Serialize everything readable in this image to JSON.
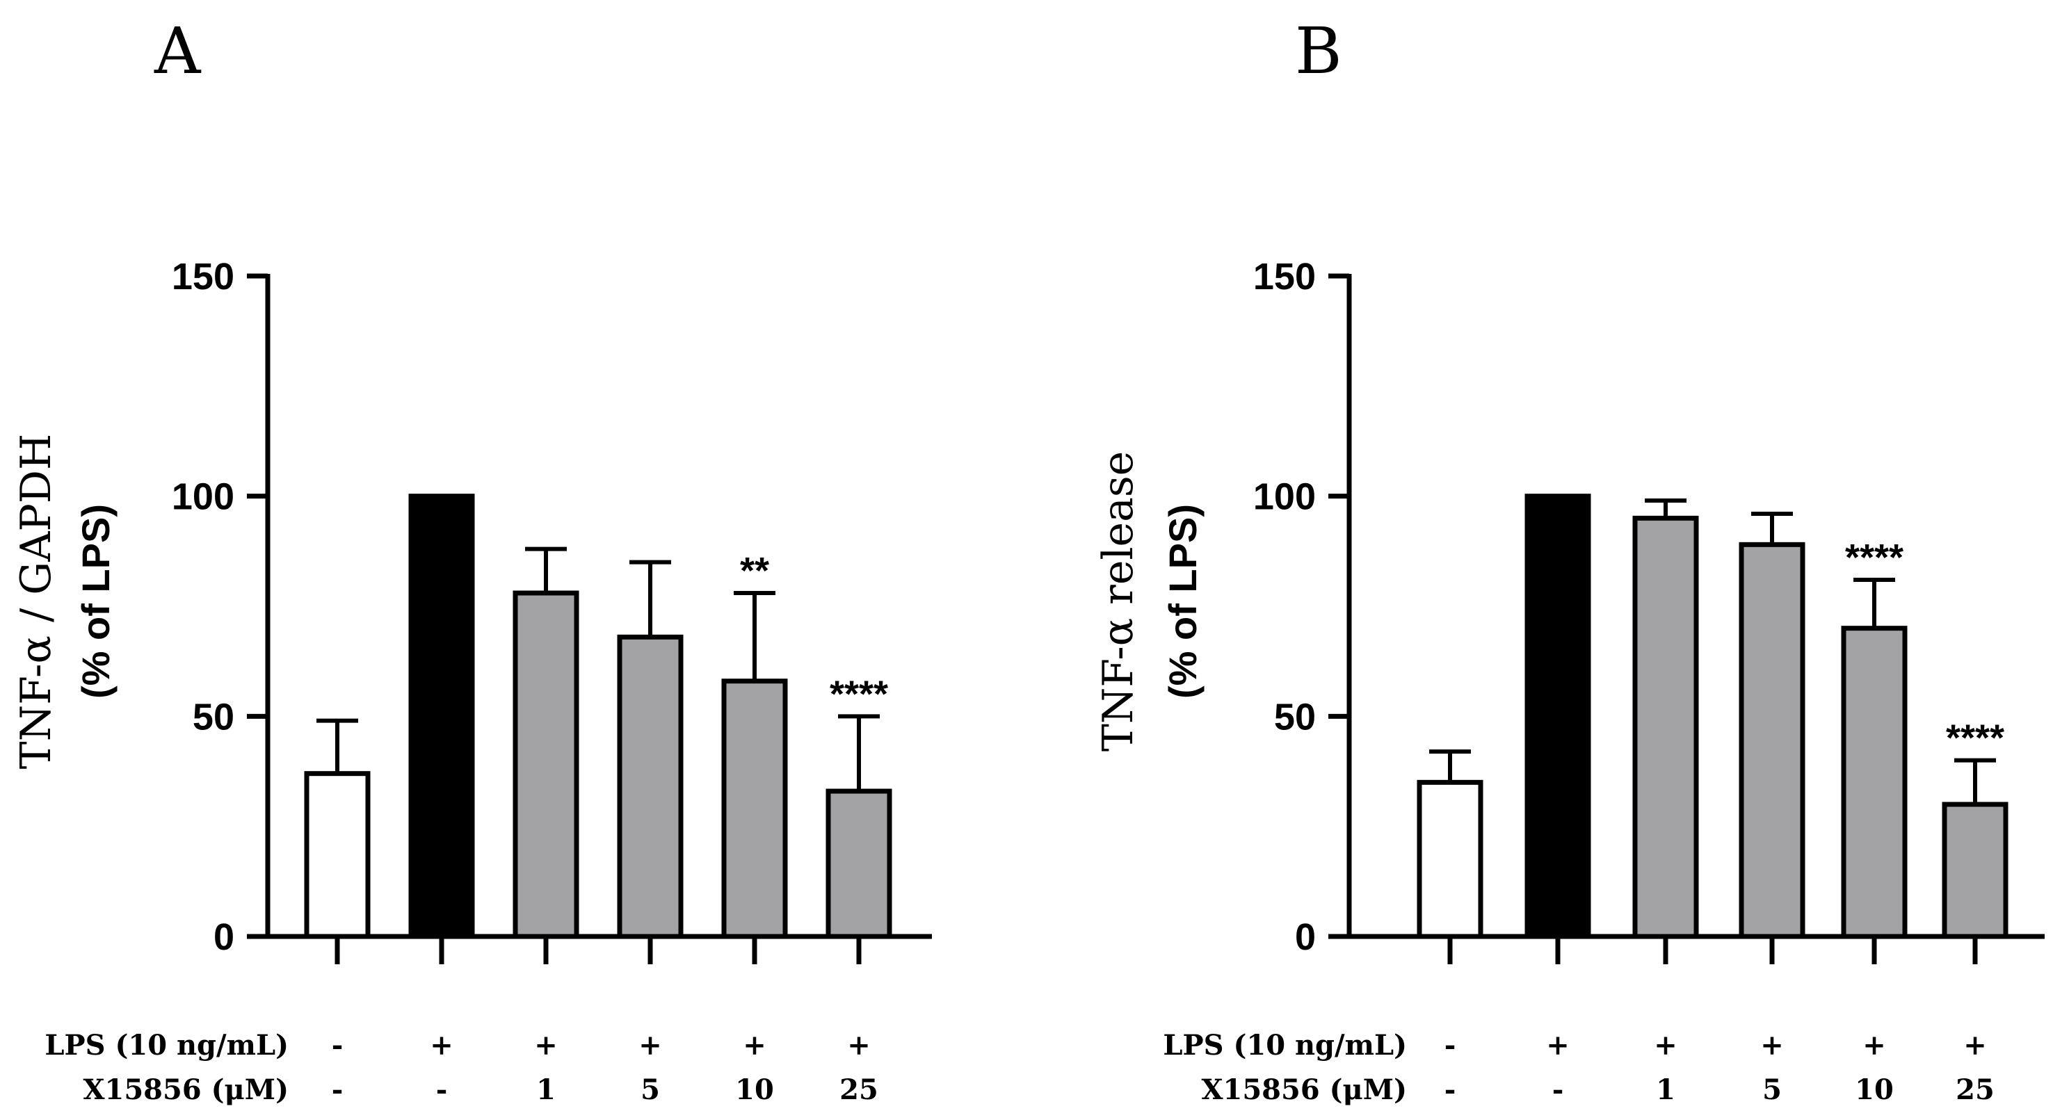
{
  "chart_data": [
    {
      "type": "bar",
      "panel": "A",
      "ylabel_line1": "TNF-α / GAPDH",
      "ylabel_line2": "(% of LPS)",
      "ylim": [
        0,
        150
      ],
      "yticks": [
        0,
        50,
        100,
        150
      ],
      "ytick_labels": [
        "0",
        "50",
        "100",
        "150"
      ],
      "rows": [
        {
          "label": "LPS (10 ng/mL)",
          "values": [
            "-",
            "+",
            "+",
            "+",
            "+",
            "+"
          ]
        },
        {
          "label": "X15856 (μM)",
          "values": [
            "-",
            "-",
            "1",
            "5",
            "10",
            "25"
          ]
        }
      ],
      "values": [
        37,
        100,
        78,
        68,
        58,
        33
      ],
      "errors": [
        12,
        0,
        10,
        17,
        20,
        17
      ],
      "annotations": [
        "",
        "",
        "",
        "",
        "**",
        "****"
      ],
      "fills": [
        "#ffffff",
        "#000000",
        "#a3a3a6",
        "#a3a3a6",
        "#a3a3a6",
        "#a3a3a6"
      ]
    },
    {
      "type": "bar",
      "panel": "B",
      "ylabel_line1": "TNF-α release",
      "ylabel_line2": "(% of LPS)",
      "ylim": [
        0,
        150
      ],
      "yticks": [
        0,
        50,
        100,
        150
      ],
      "ytick_labels": [
        "0",
        "50",
        "100",
        "150"
      ],
      "rows": [
        {
          "label": "LPS (10 ng/mL)",
          "values": [
            "-",
            "+",
            "+",
            "+",
            "+",
            "+"
          ]
        },
        {
          "label": "X15856 (μM)",
          "values": [
            "-",
            "-",
            "1",
            "5",
            "10",
            "25"
          ]
        }
      ],
      "values": [
        35,
        100,
        95,
        89,
        70,
        30
      ],
      "errors": [
        7,
        0,
        4,
        7,
        11,
        10
      ],
      "annotations": [
        "",
        "",
        "",
        "",
        "****",
        "****"
      ],
      "fills": [
        "#ffffff",
        "#000000",
        "#a3a3a6",
        "#a3a3a6",
        "#a3a3a6",
        "#a3a3a6"
      ]
    }
  ]
}
